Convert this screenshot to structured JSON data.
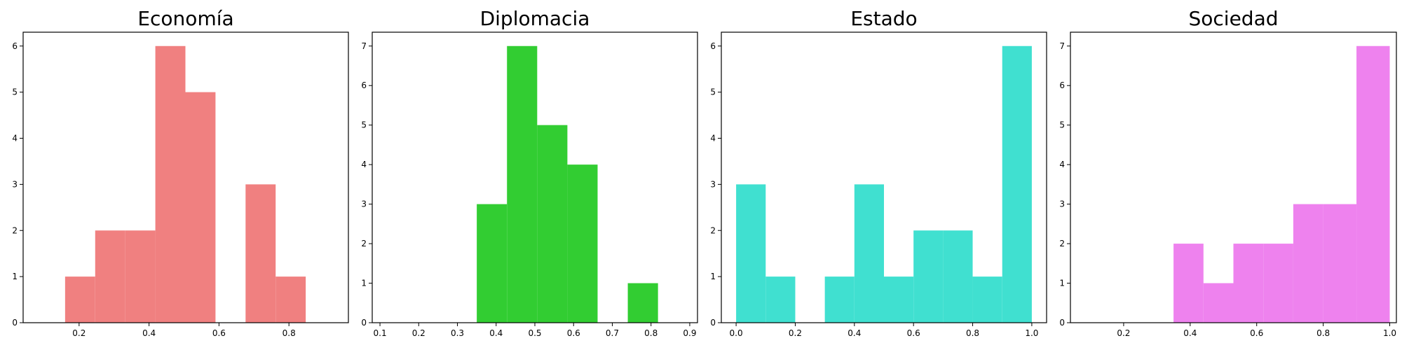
{
  "chart_data": [
    {
      "type": "bar",
      "title": "Economía",
      "color": "#F08080",
      "xlim": [
        0.04,
        0.97
      ],
      "ylim": [
        0,
        6.3
      ],
      "xticks": [
        "0.2",
        "0.4",
        "0.6",
        "0.8"
      ],
      "yticks": [
        "0",
        "1",
        "2",
        "3",
        "4",
        "5",
        "6"
      ],
      "bins": [
        {
          "x0": 0.16,
          "x1": 0.246,
          "count": 1
        },
        {
          "x0": 0.246,
          "x1": 0.332,
          "count": 2
        },
        {
          "x0": 0.332,
          "x1": 0.418,
          "count": 2
        },
        {
          "x0": 0.418,
          "x1": 0.504,
          "count": 6
        },
        {
          "x0": 0.504,
          "x1": 0.59,
          "count": 5
        },
        {
          "x0": 0.59,
          "x1": 0.676,
          "count": 0
        },
        {
          "x0": 0.676,
          "x1": 0.762,
          "count": 3
        },
        {
          "x0": 0.762,
          "x1": 0.848,
          "count": 1
        }
      ]
    },
    {
      "type": "bar",
      "title": "Diplomacia",
      "color": "#32CD32",
      "xlim": [
        0.08,
        0.92
      ],
      "ylim": [
        0,
        7.35
      ],
      "xticks": [
        "0.1",
        "0.2",
        "0.3",
        "0.4",
        "0.5",
        "0.6",
        "0.7",
        "0.8",
        "0.9"
      ],
      "yticks": [
        "0",
        "1",
        "2",
        "3",
        "4",
        "5",
        "6",
        "7"
      ],
      "bins": [
        {
          "x0": 0.35,
          "x1": 0.428,
          "count": 3
        },
        {
          "x0": 0.428,
          "x1": 0.506,
          "count": 7
        },
        {
          "x0": 0.506,
          "x1": 0.584,
          "count": 5
        },
        {
          "x0": 0.584,
          "x1": 0.662,
          "count": 4
        },
        {
          "x0": 0.662,
          "x1": 0.74,
          "count": 0
        },
        {
          "x0": 0.74,
          "x1": 0.818,
          "count": 1
        }
      ]
    },
    {
      "type": "bar",
      "title": "Estado",
      "color": "#40E0D0",
      "xlim": [
        -0.05,
        1.05
      ],
      "ylim": [
        0,
        6.3
      ],
      "xticks": [
        "0.0",
        "0.2",
        "0.4",
        "0.6",
        "0.8",
        "1.0"
      ],
      "yticks": [
        "0",
        "1",
        "2",
        "3",
        "4",
        "5",
        "6"
      ],
      "bins": [
        {
          "x0": 0.0,
          "x1": 0.1,
          "count": 3
        },
        {
          "x0": 0.1,
          "x1": 0.2,
          "count": 1
        },
        {
          "x0": 0.2,
          "x1": 0.3,
          "count": 0
        },
        {
          "x0": 0.3,
          "x1": 0.4,
          "count": 1
        },
        {
          "x0": 0.4,
          "x1": 0.5,
          "count": 3
        },
        {
          "x0": 0.5,
          "x1": 0.6,
          "count": 1
        },
        {
          "x0": 0.6,
          "x1": 0.7,
          "count": 2
        },
        {
          "x0": 0.7,
          "x1": 0.8,
          "count": 2
        },
        {
          "x0": 0.8,
          "x1": 0.9,
          "count": 1
        },
        {
          "x0": 0.9,
          "x1": 1.0,
          "count": 6
        }
      ]
    },
    {
      "type": "bar",
      "title": "Sociedad",
      "color": "#EE82EE",
      "xlim": [
        0.04,
        1.02
      ],
      "ylim": [
        0,
        7.35
      ],
      "xticks": [
        "0.2",
        "0.4",
        "0.6",
        "0.8",
        "1.0"
      ],
      "yticks": [
        "0",
        "1",
        "2",
        "3",
        "4",
        "5",
        "6",
        "7"
      ],
      "bins": [
        {
          "x0": 0.35,
          "x1": 0.44,
          "count": 2
        },
        {
          "x0": 0.44,
          "x1": 0.53,
          "count": 1
        },
        {
          "x0": 0.53,
          "x1": 0.62,
          "count": 2
        },
        {
          "x0": 0.62,
          "x1": 0.71,
          "count": 2
        },
        {
          "x0": 0.71,
          "x1": 0.8,
          "count": 3
        },
        {
          "x0": 0.8,
          "x1": 0.9,
          "count": 3
        },
        {
          "x0": 0.9,
          "x1": 1.0,
          "count": 7
        }
      ]
    }
  ]
}
